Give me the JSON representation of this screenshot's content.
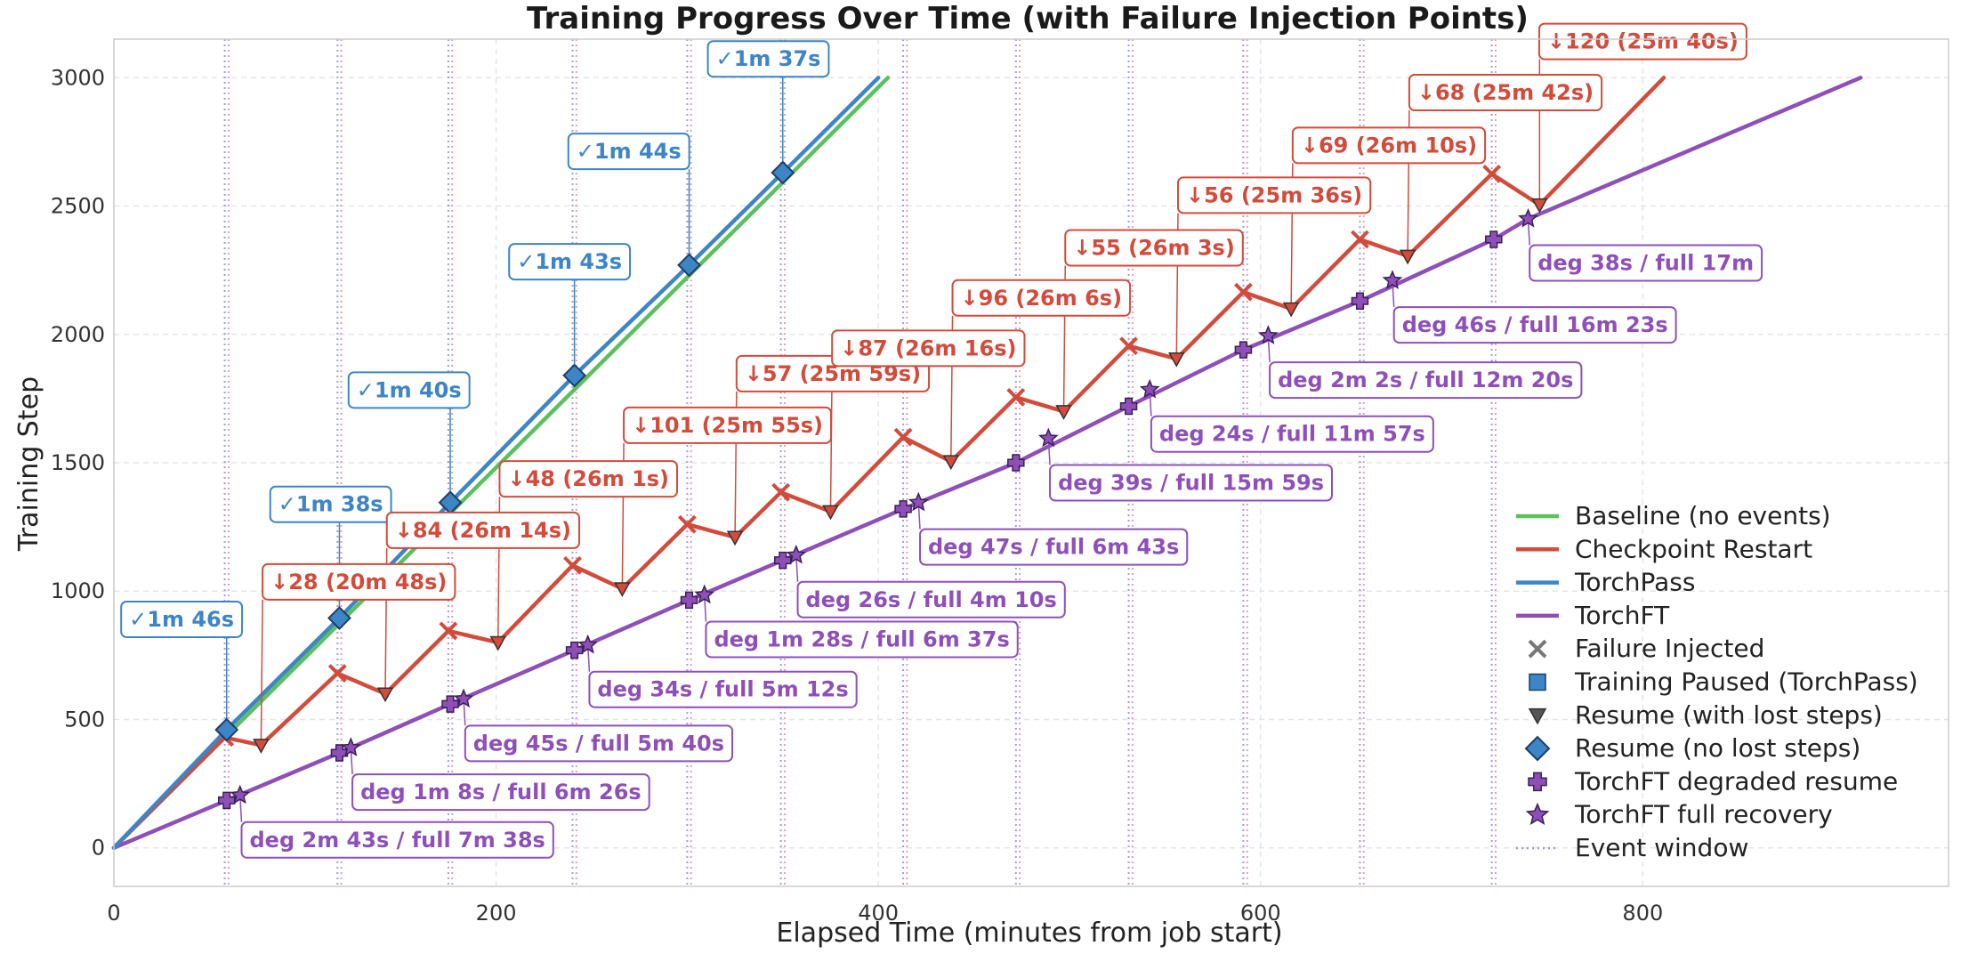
{
  "chart_data": {
    "type": "line",
    "title": "Training Progress Over Time (with Failure Injection Points)",
    "xlabel": "Elapsed Time (minutes from job start)",
    "ylabel": "Training Step",
    "xlim": [
      0,
      960
    ],
    "ylim": [
      -150,
      3150
    ],
    "xticks": [
      0,
      200,
      400,
      600,
      800
    ],
    "yticks": [
      0,
      500,
      1000,
      1500,
      2000,
      2500,
      3000
    ],
    "grid": true,
    "legend_position": "lower-right",
    "event_windows": [
      {
        "start": 58,
        "end": 60
      },
      {
        "start": 117,
        "end": 119
      },
      {
        "start": 175,
        "end": 177
      },
      {
        "start": 240,
        "end": 242
      },
      {
        "start": 300,
        "end": 302
      },
      {
        "start": 349,
        "end": 351
      },
      {
        "start": 413,
        "end": 415
      },
      {
        "start": 472,
        "end": 474
      },
      {
        "start": 531,
        "end": 533
      },
      {
        "start": 591,
        "end": 593
      },
      {
        "start": 652,
        "end": 654
      },
      {
        "start": 721,
        "end": 723
      }
    ],
    "series": [
      {
        "name": "Baseline (no events)",
        "color": "#5cc05c",
        "points": [
          [
            0,
            0
          ],
          [
            405,
            3000
          ]
        ]
      },
      {
        "name": "TorchPass",
        "color": "#3d85c6",
        "points": [
          [
            0,
            0
          ],
          [
            59,
            460
          ],
          [
            118,
            895
          ],
          [
            176,
            1345
          ],
          [
            241,
            1840
          ],
          [
            301,
            2270
          ],
          [
            350,
            2630
          ],
          [
            400,
            3000
          ]
        ]
      },
      {
        "name": "Checkpoint Restart",
        "color": "#d24b3b",
        "points": [
          [
            0,
            0
          ],
          [
            58,
            430
          ],
          [
            77,
            400
          ],
          [
            117,
            680
          ],
          [
            142,
            600
          ],
          [
            175,
            845
          ],
          [
            201,
            800
          ],
          [
            240,
            1100
          ],
          [
            266,
            1010
          ],
          [
            300,
            1260
          ],
          [
            325,
            1210
          ],
          [
            349,
            1385
          ],
          [
            375,
            1310
          ],
          [
            413,
            1600
          ],
          [
            438,
            1505
          ],
          [
            472,
            1755
          ],
          [
            497,
            1700
          ],
          [
            531,
            1955
          ],
          [
            556,
            1905
          ],
          [
            591,
            2165
          ],
          [
            616,
            2100
          ],
          [
            652,
            2370
          ],
          [
            677,
            2305
          ],
          [
            721,
            2625
          ],
          [
            746,
            2505
          ],
          [
            811,
            3000
          ]
        ]
      },
      {
        "name": "TorchFT",
        "color": "#8e50b8",
        "points": [
          [
            0,
            0
          ],
          [
            59,
            185
          ],
          [
            118,
            370
          ],
          [
            176,
            560
          ],
          [
            241,
            770
          ],
          [
            301,
            965
          ],
          [
            350,
            1120
          ],
          [
            413,
            1320
          ],
          [
            472,
            1500
          ],
          [
            531,
            1720
          ],
          [
            591,
            1940
          ],
          [
            652,
            2130
          ],
          [
            722,
            2370
          ],
          [
            740,
            2450
          ],
          [
            914,
            3000
          ]
        ]
      }
    ],
    "markers": {
      "failure": [
        [
          58,
          430
        ],
        [
          117,
          680
        ],
        [
          175,
          845
        ],
        [
          240,
          1100
        ],
        [
          300,
          1260
        ],
        [
          349,
          1385
        ],
        [
          413,
          1600
        ],
        [
          472,
          1755
        ],
        [
          531,
          1955
        ],
        [
          591,
          2165
        ],
        [
          652,
          2370
        ],
        [
          721,
          2625
        ]
      ],
      "resume_lost": [
        [
          77,
          400
        ],
        [
          142,
          600
        ],
        [
          201,
          800
        ],
        [
          266,
          1010
        ],
        [
          325,
          1210
        ],
        [
          375,
          1310
        ],
        [
          438,
          1505
        ],
        [
          497,
          1700
        ],
        [
          556,
          1905
        ],
        [
          616,
          2100
        ],
        [
          677,
          2305
        ],
        [
          746,
          2505
        ]
      ],
      "resume_no_loss": [
        [
          59,
          460
        ],
        [
          118,
          895
        ],
        [
          176,
          1345
        ],
        [
          241,
          1840
        ],
        [
          301,
          2270
        ],
        [
          350,
          2630
        ]
      ],
      "torchft_degraded": [
        [
          59,
          185
        ],
        [
          118,
          370
        ],
        [
          176,
          560
        ],
        [
          241,
          770
        ],
        [
          301,
          965
        ],
        [
          350,
          1120
        ],
        [
          413,
          1320
        ],
        [
          472,
          1500
        ],
        [
          531,
          1720
        ],
        [
          591,
          1940
        ],
        [
          652,
          2130
        ],
        [
          722,
          2370
        ]
      ],
      "torchft_full": [
        [
          66,
          205
        ],
        [
          124,
          390
        ],
        [
          183,
          580
        ],
        [
          248,
          790
        ],
        [
          309,
          985
        ],
        [
          357,
          1140
        ],
        [
          421,
          1345
        ],
        [
          489,
          1595
        ],
        [
          542,
          1785
        ],
        [
          604,
          1995
        ],
        [
          669,
          2210
        ],
        [
          740,
          2450
        ]
      ]
    },
    "annotations": {
      "torchpass": [
        {
          "text": "✓1m 46s",
          "at": [
            59,
            460
          ],
          "label": [
            8,
            890
          ]
        },
        {
          "text": "✓1m 38s",
          "at": [
            118,
            895
          ],
          "label": [
            86,
            1338
          ]
        },
        {
          "text": "✓1m 40s",
          "at": [
            176,
            1345
          ],
          "label": [
            127,
            1783
          ]
        },
        {
          "text": "✓1m 43s",
          "at": [
            241,
            1840
          ],
          "label": [
            211,
            2283
          ]
        },
        {
          "text": "✓1m 44s",
          "at": [
            301,
            2270
          ],
          "label": [
            242,
            2713
          ]
        },
        {
          "text": "✓1m 37s",
          "at": [
            350,
            2630
          ],
          "label": [
            315,
            3073
          ]
        }
      ],
      "checkpoint": [
        {
          "text": "↓28 (20m 48s)",
          "at": [
            77,
            400
          ],
          "label": [
            82,
            1036
          ]
        },
        {
          "text": "↓84 (26m 14s)",
          "at": [
            142,
            600
          ],
          "label": [
            147,
            1237
          ]
        },
        {
          "text": "↓48 (26m 1s)",
          "at": [
            201,
            800
          ],
          "label": [
            206,
            1437
          ]
        },
        {
          "text": "↓101 (25m 55s)",
          "at": [
            266,
            1010
          ],
          "label": [
            271,
            1646
          ]
        },
        {
          "text": "↓57 (25m 59s)",
          "at": [
            325,
            1210
          ],
          "label": [
            330,
            1847
          ]
        },
        {
          "text": "↓87 (26m 16s)",
          "at": [
            375,
            1310
          ],
          "label": [
            380,
            1946
          ]
        },
        {
          "text": "↓96 (26m 6s)",
          "at": [
            438,
            1505
          ],
          "label": [
            443,
            2142
          ]
        },
        {
          "text": "↓55 (26m 3s)",
          "at": [
            497,
            1700
          ],
          "label": [
            502,
            2337
          ]
        },
        {
          "text": "↓56 (25m 36s)",
          "at": [
            556,
            1905
          ],
          "label": [
            561,
            2542
          ]
        },
        {
          "text": "↓69 (26m 10s)",
          "at": [
            616,
            2100
          ],
          "label": [
            621,
            2736
          ]
        },
        {
          "text": "↓68 (25m 42s)",
          "at": [
            677,
            2305
          ],
          "label": [
            682,
            2942
          ]
        },
        {
          "text": "↓120 (25m 40s)",
          "at": [
            746,
            2505
          ],
          "label": [
            750,
            3141
          ]
        }
      ],
      "torchft": [
        {
          "text": "deg 2m 43s / full 7m 38s",
          "at": [
            66,
            205
          ],
          "label": [
            71,
            31
          ]
        },
        {
          "text": "deg 1m 8s / full 6m 26s",
          "at": [
            124,
            390
          ],
          "label": [
            129,
            217
          ]
        },
        {
          "text": "deg 45s / full 5m 40s",
          "at": [
            183,
            580
          ],
          "label": [
            188,
            407
          ]
        },
        {
          "text": "deg 34s / full 5m 12s",
          "at": [
            248,
            790
          ],
          "label": [
            253,
            617
          ]
        },
        {
          "text": "deg 1m 28s / full 6m 37s",
          "at": [
            309,
            985
          ],
          "label": [
            314,
            812
          ]
        },
        {
          "text": "deg 26s / full 4m 10s",
          "at": [
            357,
            1140
          ],
          "label": [
            362,
            967
          ]
        },
        {
          "text": "deg 47s / full 6m 43s",
          "at": [
            421,
            1345
          ],
          "label": [
            426,
            1172
          ]
        },
        {
          "text": "deg 39s / full 15m 59s",
          "at": [
            489,
            1595
          ],
          "label": [
            494,
            1422
          ]
        },
        {
          "text": "deg 24s / full 11m 57s",
          "at": [
            542,
            1785
          ],
          "label": [
            547,
            1612
          ]
        },
        {
          "text": "deg 2m 2s / full 12m 20s",
          "at": [
            604,
            1995
          ],
          "label": [
            609,
            1822
          ]
        },
        {
          "text": "deg 46s / full 16m 23s",
          "at": [
            669,
            2210
          ],
          "label": [
            674,
            2037
          ]
        },
        {
          "text": "deg 38s / full 17m",
          "at": [
            740,
            2450
          ],
          "label": [
            745,
            2278
          ]
        }
      ]
    },
    "legend": [
      {
        "label": "Baseline (no events)",
        "kind": "line",
        "color": "#5cc05c"
      },
      {
        "label": "Checkpoint Restart",
        "kind": "line",
        "color": "#d24b3b"
      },
      {
        "label": "TorchPass",
        "kind": "line",
        "color": "#3d85c6"
      },
      {
        "label": "TorchFT",
        "kind": "line",
        "color": "#8e50b8"
      },
      {
        "label": "Failure Injected",
        "kind": "x",
        "color": "#777777"
      },
      {
        "label": "Training Paused (TorchPass)",
        "kind": "square",
        "color": "#3d85c6"
      },
      {
        "label": "Resume (with lost steps)",
        "kind": "tri",
        "color": "#555555"
      },
      {
        "label": "Resume (no lost steps)",
        "kind": "diamond",
        "color": "#3d85c6"
      },
      {
        "label": "TorchFT degraded resume",
        "kind": "plus",
        "color": "#8e50b8"
      },
      {
        "label": "TorchFT full recovery",
        "kind": "star",
        "color": "#8e50b8"
      },
      {
        "label": "Event window",
        "kind": "dotted",
        "color": "#9a9ad0"
      }
    ]
  },
  "colors": {
    "checkpoint": "#d24b3b",
    "torchpass": "#3d85c6",
    "torchft": "#8e50b8",
    "baseline": "#5cc05c",
    "event_window": "#9a9ad0",
    "grid": "#e4e4ec"
  }
}
